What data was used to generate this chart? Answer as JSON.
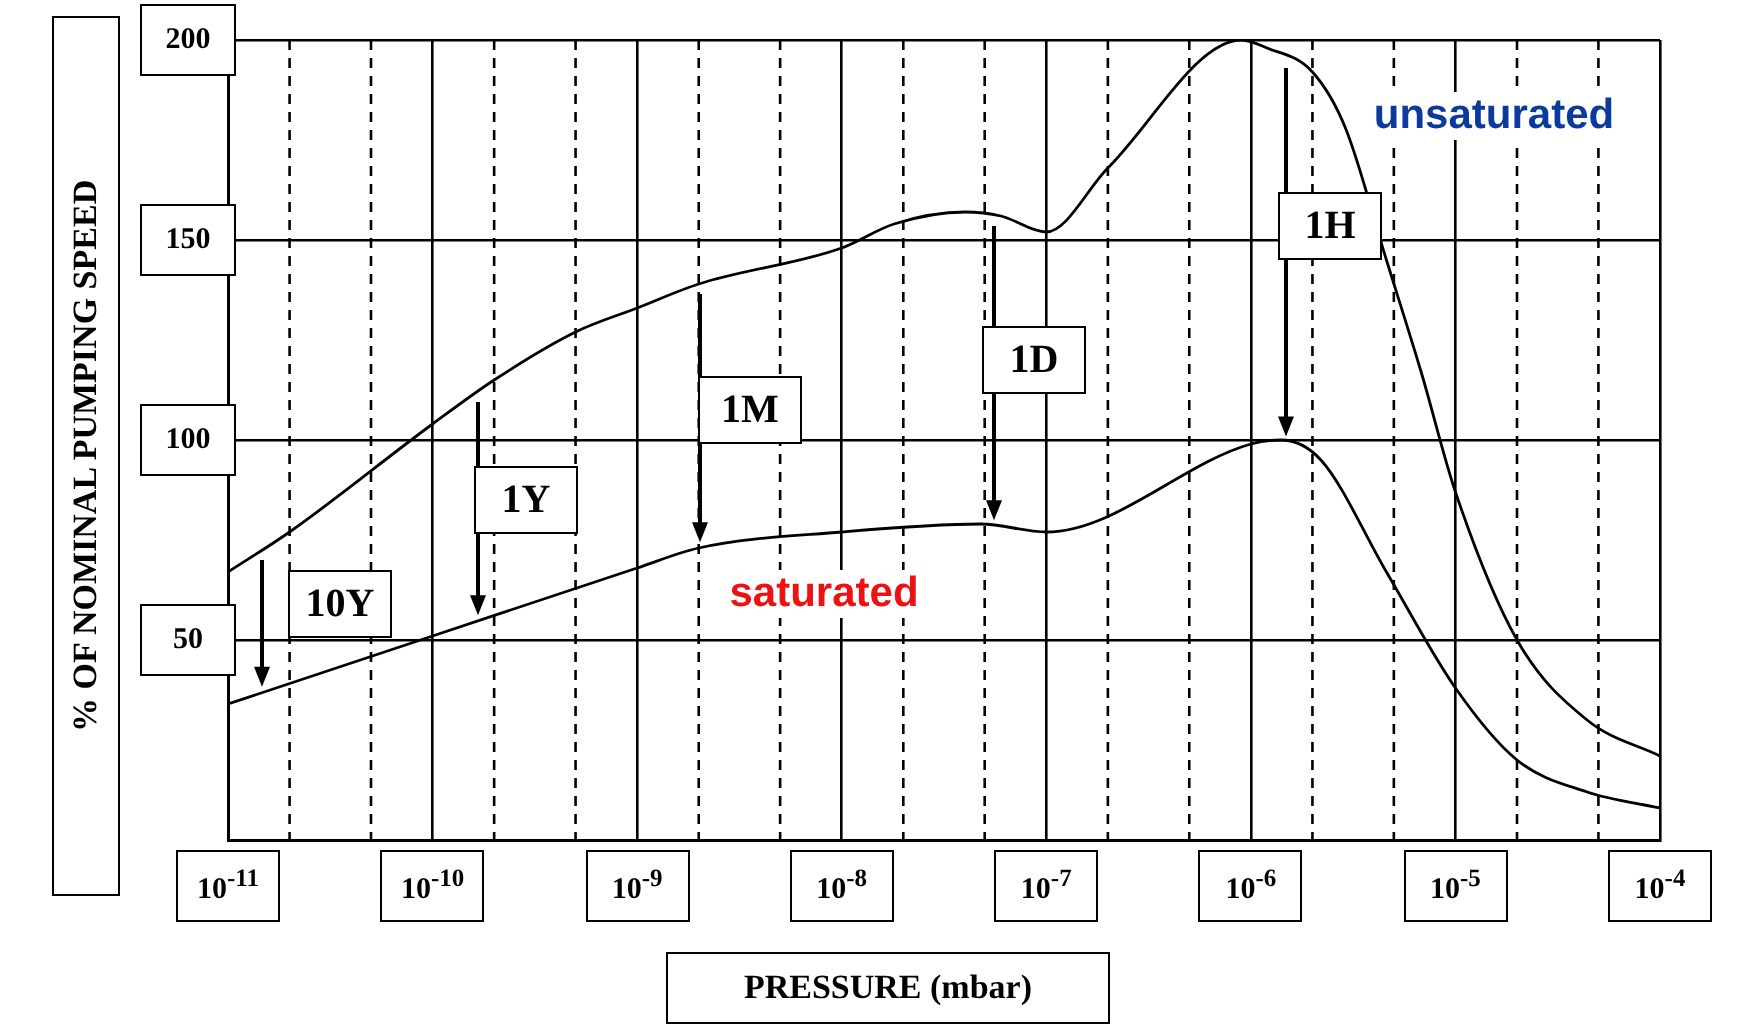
{
  "chart_data": {
    "type": "line",
    "xlabel": "PRESSURE (mbar)",
    "ylabel": "% OF NOMINAL PUMPING SPEED",
    "log": "x",
    "xlim": [
      1e-11,
      0.0001
    ],
    "ylim": [
      0,
      200
    ],
    "xticks": [
      {
        "value": 1e-11,
        "label": "10$^{-11}$"
      },
      {
        "value": 1e-10,
        "label": "10$^{-10}$"
      },
      {
        "value": 1e-09,
        "label": "10$^{-9}$"
      },
      {
        "value": 1e-08,
        "label": "10$^{-8}$"
      },
      {
        "value": 1e-07,
        "label": "10$^{-7}$"
      },
      {
        "value": 1e-06,
        "label": "10$^{-6}$"
      },
      {
        "value": 1e-05,
        "label": "10$^{-5}$"
      },
      {
        "value": 0.0001,
        "label": "10$^{-4}$"
      }
    ],
    "yticks": [
      50,
      100,
      150,
      200
    ],
    "grid": true,
    "legend": false,
    "marker": "none",
    "line_style": "solid",
    "series": [
      {
        "color": "#000000",
        "x": [
          1e-11,
          2e-11,
          1e-10,
          2e-10,
          5e-10,
          1e-09,
          2e-09,
          1e-08,
          1.8e-08,
          4e-08,
          6e-08,
          1e-07,
          2e-07,
          9e-07,
          1.2e-06,
          2e-06,
          2.9e-06,
          4.6e-06,
          6.8e-06,
          1e-05,
          2e-05,
          4.4e-05,
          0.0001
        ],
        "values": [
          67,
          77,
          104,
          115,
          127,
          133,
          139,
          148,
          154,
          157,
          156,
          152,
          168,
          200,
          198,
          192,
          178,
          145,
          117,
          87,
          50,
          30,
          21
        ]
      },
      {
        "color": "#000000",
        "x": [
          1e-11,
          1e-10,
          1e-09,
          2e-09,
          1e-08,
          4.8e-08,
          1e-07,
          1e-06,
          1.4e-06,
          2.2e-06,
          4.6e-06,
          1e-05,
          2e-05,
          4.4e-05,
          0.0001
        ],
        "values": [
          34,
          51,
          68,
          73,
          77,
          79,
          77,
          99,
          100,
          95,
          67,
          38,
          20,
          12,
          8
        ]
      }
    ],
    "annotations": [
      "10Y",
      "1Y",
      "1M",
      "1D",
      "1H",
      "saturated",
      "unsaturated"
    ]
  }
}
